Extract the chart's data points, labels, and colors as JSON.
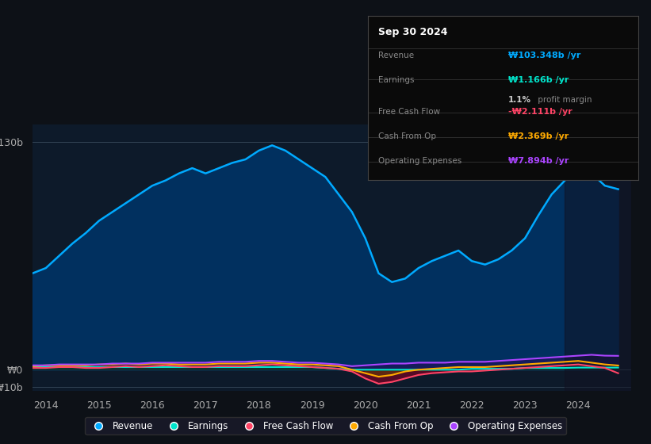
{
  "background_color": "#0d1117",
  "plot_bg_color": "#0d1a2a",
  "ylabel_top": "₩130b",
  "ylabel_zero": "₩0",
  "ylabel_neg": "-₩10b",
  "x_ticks": [
    2014,
    2015,
    2016,
    2017,
    2018,
    2019,
    2020,
    2021,
    2022,
    2023,
    2024
  ],
  "ylim": [
    -12,
    140
  ],
  "revenue_color": "#00aaff",
  "earnings_color": "#00e5cc",
  "fcf_color": "#ff4466",
  "cashfromop_color": "#ffaa00",
  "opex_color": "#aa44ff",
  "fill_revenue_color": "#003366",
  "info_box_title": "Sep 30 2024",
  "legend": [
    {
      "label": "Revenue",
      "color": "#00aaff"
    },
    {
      "label": "Earnings",
      "color": "#00e5cc"
    },
    {
      "label": "Free Cash Flow",
      "color": "#ff4466"
    },
    {
      "label": "Cash From Op",
      "color": "#ffaa00"
    },
    {
      "label": "Operating Expenses",
      "color": "#aa44ff"
    }
  ],
  "years": [
    2013.75,
    2014.0,
    2014.25,
    2014.5,
    2014.75,
    2015.0,
    2015.25,
    2015.5,
    2015.75,
    2016.0,
    2016.25,
    2016.5,
    2016.75,
    2017.0,
    2017.25,
    2017.5,
    2017.75,
    2018.0,
    2018.25,
    2018.5,
    2018.75,
    2019.0,
    2019.25,
    2019.5,
    2019.75,
    2020.0,
    2020.25,
    2020.5,
    2020.75,
    2021.0,
    2021.25,
    2021.5,
    2021.75,
    2022.0,
    2022.25,
    2022.5,
    2022.75,
    2023.0,
    2023.25,
    2023.5,
    2023.75,
    2024.0,
    2024.25,
    2024.5,
    2024.75
  ],
  "revenue": [
    55,
    58,
    65,
    72,
    78,
    85,
    90,
    95,
    100,
    105,
    108,
    112,
    115,
    112,
    115,
    118,
    120,
    125,
    128,
    125,
    120,
    115,
    110,
    100,
    90,
    75,
    55,
    50,
    52,
    58,
    62,
    65,
    68,
    62,
    60,
    63,
    68,
    75,
    88,
    100,
    108,
    115,
    112,
    105,
    103
  ],
  "earnings": [
    1.5,
    1.5,
    1.5,
    1.5,
    1.5,
    1.5,
    1.5,
    1.5,
    1.5,
    1.5,
    1.5,
    1.5,
    1.5,
    1.5,
    1.5,
    1.5,
    1.5,
    1.5,
    1.5,
    1.5,
    1.5,
    1.5,
    1.0,
    0.5,
    0.0,
    0.0,
    0.0,
    0.0,
    0.0,
    0.0,
    0.0,
    0.0,
    0.0,
    0.5,
    0.5,
    0.5,
    0.5,
    1.0,
    1.0,
    1.0,
    1.0,
    1.2,
    1.2,
    1.2,
    1.2
  ],
  "fcf": [
    1.0,
    1.0,
    1.5,
    1.5,
    1.0,
    1.0,
    1.5,
    2.0,
    1.5,
    2.0,
    2.5,
    2.0,
    1.5,
    1.5,
    2.0,
    2.0,
    2.0,
    2.5,
    3.0,
    2.5,
    2.0,
    1.5,
    1.0,
    0.5,
    -1.0,
    -5.0,
    -8.0,
    -7.0,
    -5.0,
    -3.0,
    -2.0,
    -1.5,
    -1.0,
    -1.0,
    -0.5,
    0.0,
    0.5,
    1.0,
    1.5,
    2.0,
    2.5,
    3.0,
    2.0,
    1.0,
    -2.0
  ],
  "cashfromop": [
    2.0,
    2.5,
    2.5,
    2.5,
    2.5,
    3.0,
    3.0,
    3.5,
    3.0,
    3.5,
    3.5,
    3.0,
    3.0,
    3.0,
    3.5,
    3.5,
    3.5,
    4.0,
    4.0,
    3.5,
    3.0,
    3.0,
    2.5,
    2.0,
    0.0,
    -2.0,
    -4.0,
    -3.0,
    -1.0,
    0.0,
    0.5,
    1.0,
    1.5,
    1.5,
    1.5,
    2.0,
    2.5,
    3.0,
    3.5,
    4.0,
    4.5,
    5.0,
    4.0,
    3.0,
    2.4
  ],
  "opex": [
    2.5,
    2.5,
    3.0,
    3.0,
    3.0,
    3.0,
    3.5,
    3.5,
    3.5,
    4.0,
    4.0,
    4.0,
    4.0,
    4.0,
    4.5,
    4.5,
    4.5,
    5.0,
    5.0,
    4.5,
    4.0,
    4.0,
    3.5,
    3.0,
    2.0,
    2.5,
    3.0,
    3.5,
    3.5,
    4.0,
    4.0,
    4.0,
    4.5,
    4.5,
    4.5,
    5.0,
    5.5,
    6.0,
    6.5,
    7.0,
    7.5,
    8.0,
    8.5,
    8.0,
    7.9
  ]
}
